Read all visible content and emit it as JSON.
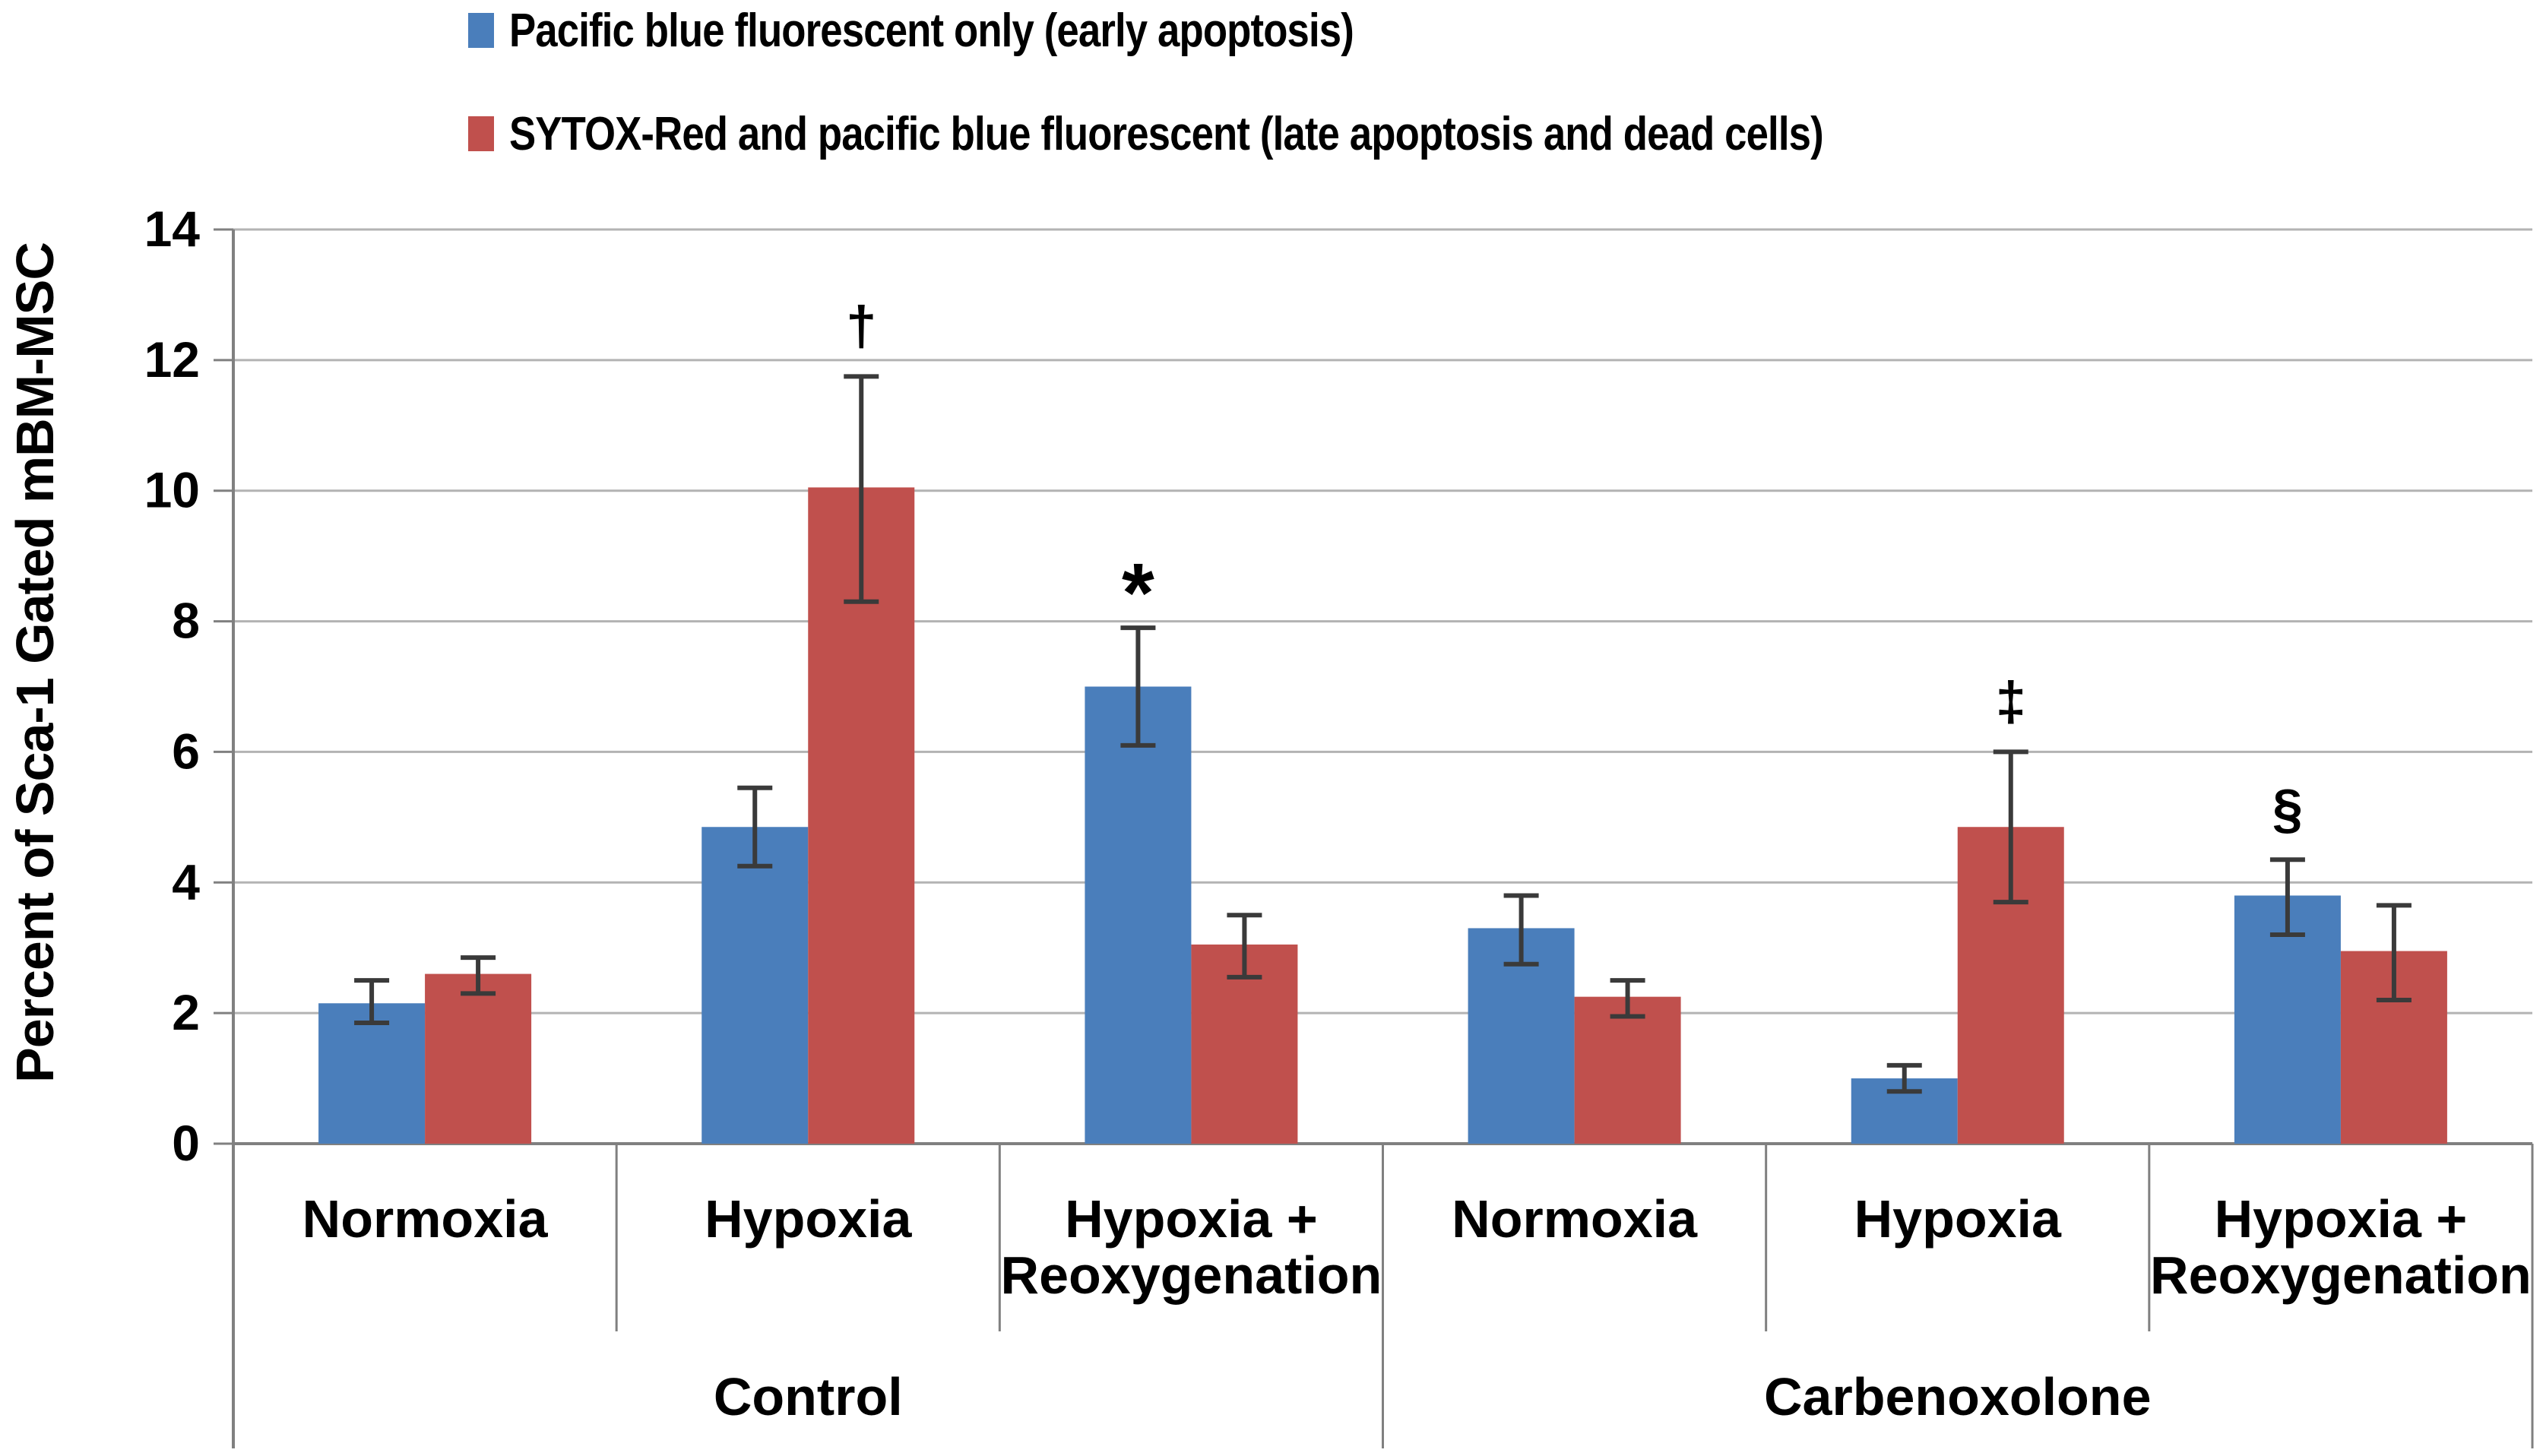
{
  "legend": {
    "items": [
      {
        "label": "Pacific blue fluorescent only (early apoptosis)",
        "color": "#4A7EBB"
      },
      {
        "label": "SYTOX-Red and pacific blue fluorescent (late apoptosis and dead cells)",
        "color": "#C0504D"
      }
    ]
  },
  "chart_data": {
    "type": "bar",
    "title": "",
    "xlabel": "",
    "ylabel": "Percent of Sca-1 Gated mBM-MSC",
    "ylim": [
      0,
      14
    ],
    "yticks": [
      0,
      2,
      4,
      6,
      8,
      10,
      12,
      14
    ],
    "grid": "horizontal gridlines every 2 units",
    "legend_position": "top-left",
    "groups": [
      {
        "label": "Control",
        "categories": [
          "Normoxia",
          "Hypoxia",
          "Hypoxia + Reoxygenation"
        ]
      },
      {
        "label": "Carbenoxolone",
        "categories": [
          "Normoxia",
          "Hypoxia",
          "Hypoxia + Reoxygenation"
        ]
      }
    ],
    "category_label_lines": [
      [
        "Normoxia"
      ],
      [
        "Hypoxia"
      ],
      [
        "Hypoxia +",
        "Reoxygenation"
      ]
    ],
    "category_keys": [
      "normoxia",
      "hypoxia",
      "hypoxia-reoxygenation"
    ],
    "group_keys": [
      "control",
      "carbenoxolone"
    ],
    "series": [
      {
        "name": "Pacific blue fluorescent only (early apoptosis)",
        "key": "early-apoptosis",
        "color": "#4A7EBB",
        "values": [
          2.15,
          4.85,
          7.0,
          3.3,
          1.0,
          3.8
        ],
        "err_low": [
          0.3,
          0.6,
          0.9,
          0.55,
          0.2,
          0.6
        ],
        "err_high": [
          0.35,
          0.6,
          0.9,
          0.5,
          0.2,
          0.55
        ],
        "annotations": [
          "",
          "",
          "*",
          "",
          "",
          "§"
        ]
      },
      {
        "name": "SYTOX-Red and pacific blue fluorescent (late apoptosis and dead cells)",
        "key": "late-apoptosis-dead-cells",
        "color": "#C0504D",
        "values": [
          2.6,
          10.05,
          3.05,
          2.25,
          4.85,
          2.95
        ],
        "err_low": [
          0.3,
          1.75,
          0.5,
          0.3,
          1.15,
          0.75
        ],
        "err_high": [
          0.25,
          1.7,
          0.45,
          0.25,
          1.15,
          0.7
        ],
        "annotations": [
          "",
          "†",
          "",
          "",
          "‡",
          ""
        ]
      }
    ]
  },
  "colors": {
    "background": "#FFFFFF",
    "gridline": "#B3B3B3",
    "axis": "#808080",
    "error_bar": "#3A3A3A",
    "text": "#000000"
  }
}
